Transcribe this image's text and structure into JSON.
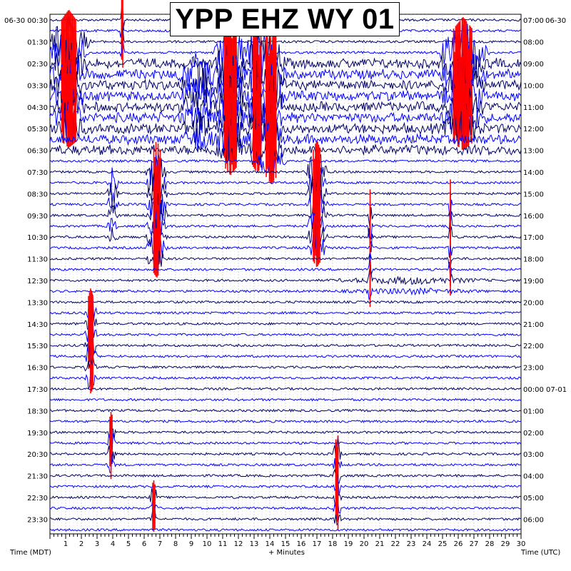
{
  "chart_data": {
    "type": "helicorder",
    "title": "YPP EHZ WY 01",
    "corner_left": "06-30",
    "corner_right": "06-30",
    "xlabel": "+ Minutes",
    "left_axis_label": "Time (MDT)",
    "right_axis_label": "Time (UTC)",
    "x_range_minutes": [
      0,
      30
    ],
    "x_ticks": [
      1,
      2,
      3,
      4,
      5,
      6,
      7,
      8,
      9,
      10,
      11,
      12,
      13,
      14,
      15,
      16,
      17,
      18,
      19,
      20,
      21,
      22,
      23,
      24,
      25,
      26,
      27,
      28,
      29,
      30
    ],
    "grid": true,
    "rows_per_hour": 2,
    "left_times": [
      "00:30",
      "01:30",
      "02:30",
      "03:30",
      "04:30",
      "05:30",
      "06:30",
      "07:30",
      "08:30",
      "09:30",
      "10:30",
      "11:30",
      "12:30",
      "13:30",
      "14:30",
      "15:30",
      "16:30",
      "17:30",
      "18:30",
      "19:30",
      "20:30",
      "21:30",
      "22:30",
      "23:30"
    ],
    "right_times": [
      "07:00",
      "08:00",
      "09:00",
      "10:00",
      "11:00",
      "12:00",
      "13:00",
      "14:00",
      "15:00",
      "16:00",
      "17:00",
      "18:00",
      "19:00",
      "20:00",
      "21:00",
      "22:00",
      "23:00",
      "00:00 07-01",
      "01:00",
      "02:00",
      "03:00",
      "04:00",
      "05:00",
      "06:00"
    ],
    "trace_colors": [
      "#000066",
      "#0000ff"
    ],
    "clip_color": "#ff0000",
    "grid_color": "#c8c8c8",
    "events": [
      {
        "start_row": 3,
        "end_row": 12,
        "minute": 11.5,
        "span_minutes": 0.8,
        "amplitude": 60,
        "clipped": true
      },
      {
        "start_row": 3,
        "end_row": 12,
        "minute": 13.2,
        "span_minutes": 0.6,
        "amplitude": 55,
        "clipped": true
      },
      {
        "start_row": 4,
        "end_row": 13,
        "minute": 14.1,
        "span_minutes": 0.7,
        "amplitude": 55,
        "clipped": true
      },
      {
        "start_row": 3,
        "end_row": 10,
        "minute": 26.3,
        "span_minutes": 1.2,
        "amplitude": 50,
        "clipped": true
      },
      {
        "start_row": 2,
        "end_row": 10,
        "minute": 1.2,
        "span_minutes": 1.0,
        "amplitude": 45,
        "clipped": true
      },
      {
        "start_row": 5,
        "end_row": 11,
        "minute": 9.5,
        "span_minutes": 1.2,
        "amplitude": 35,
        "clipped": false
      },
      {
        "start_row": 14,
        "end_row": 22,
        "minute": 6.8,
        "span_minutes": 0.5,
        "amplitude": 45,
        "clipped": true
      },
      {
        "start_row": 14,
        "end_row": 21,
        "minute": 17.0,
        "span_minutes": 0.5,
        "amplitude": 45,
        "clipped": true
      },
      {
        "start_row": 15,
        "end_row": 20,
        "minute": 4.0,
        "span_minutes": 0.3,
        "amplitude": 25,
        "clipped": false
      },
      {
        "start_row": 27,
        "end_row": 33,
        "minute": 2.6,
        "span_minutes": 0.3,
        "amplitude": 35,
        "clipped": true
      },
      {
        "start_row": 24,
        "end_row": 25,
        "minute": 23.0,
        "span_minutes": 5.0,
        "amplitude": 6,
        "clipped": false
      },
      {
        "start_row": 38,
        "end_row": 41,
        "minute": 3.9,
        "span_minutes": 0.2,
        "amplitude": 30,
        "clipped": true
      },
      {
        "start_row": 40,
        "end_row": 46,
        "minute": 18.3,
        "span_minutes": 0.2,
        "amplitude": 30,
        "clipped": true
      },
      {
        "start_row": 44,
        "end_row": 46,
        "minute": 6.6,
        "span_minutes": 0.2,
        "amplitude": 25,
        "clipped": true
      },
      {
        "start_row": 0,
        "end_row": 3,
        "minute": 4.6,
        "span_minutes": 0.1,
        "amplitude": 40,
        "clipped": true
      },
      {
        "start_row": 18,
        "end_row": 25,
        "minute": 20.4,
        "span_minutes": 0.1,
        "amplitude": 40,
        "clipped": true
      },
      {
        "start_row": 17,
        "end_row": 24,
        "minute": 25.5,
        "span_minutes": 0.1,
        "amplitude": 35,
        "clipped": true
      }
    ]
  }
}
